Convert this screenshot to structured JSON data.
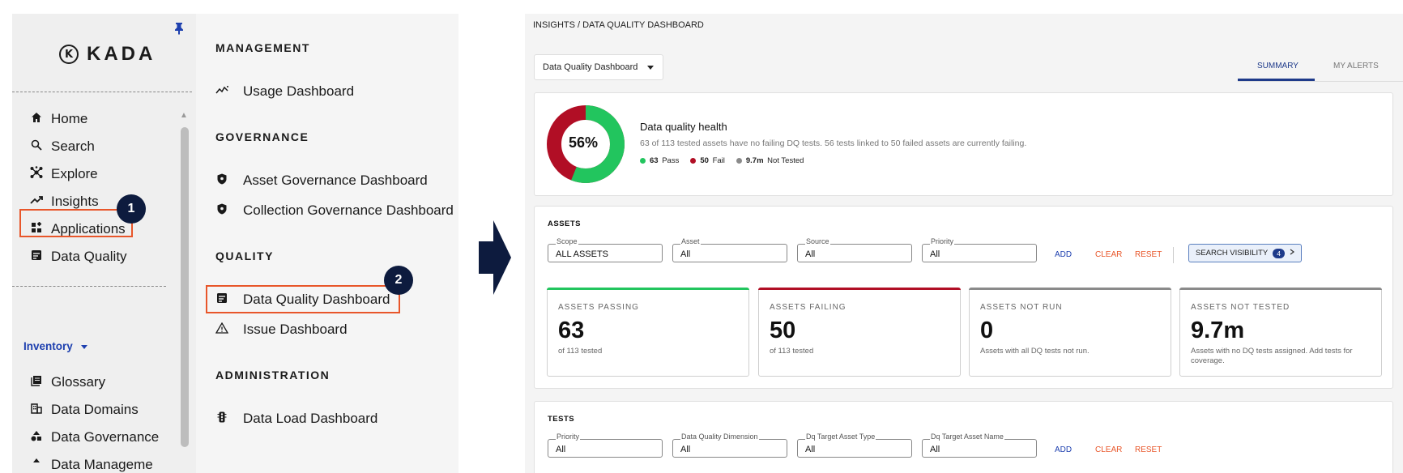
{
  "nav": {
    "logo_mark": "K",
    "logo_text": "KADA",
    "items": [
      {
        "icon": "home-icon",
        "label": "Home"
      },
      {
        "icon": "search-icon",
        "label": "Search"
      },
      {
        "icon": "explore-icon",
        "label": "Explore"
      },
      {
        "icon": "trend-icon",
        "label": "Insights"
      },
      {
        "icon": "apps-icon",
        "label": "Applications"
      },
      {
        "icon": "data-quality-icon",
        "label": "Data Quality"
      }
    ],
    "inventory_label": "Inventory",
    "inventory_items": [
      {
        "icon": "glossary-icon",
        "label": "Glossary"
      },
      {
        "icon": "domains-icon",
        "label": "Data Domains"
      },
      {
        "icon": "governance-icon",
        "label": "Data Governance"
      },
      {
        "icon": "management-icon",
        "label": "Data Manageme"
      }
    ]
  },
  "callouts": {
    "one": "1",
    "two": "2"
  },
  "submenu": {
    "management_title": "MANAGEMENT",
    "usage_dashboard": "Usage Dashboard",
    "governance_title": "GOVERNANCE",
    "asset_governance": "Asset Governance Dashboard",
    "collection_governance": "Collection Governance Dashboard",
    "quality_title": "QUALITY",
    "dq_dashboard": "Data Quality Dashboard",
    "issue_dashboard": "Issue Dashboard",
    "administration_title": "ADMINISTRATION",
    "data_load": "Data Load Dashboard"
  },
  "dashboard": {
    "breadcrumb": "INSIGHTS / DATA QUALITY DASHBOARD",
    "selector_value": "Data Quality Dashboard",
    "tabs": {
      "summary": "SUMMARY",
      "alerts": "MY ALERTS"
    },
    "health": {
      "percent": "56%",
      "pass_fraction": 0.56,
      "title": "Data quality health",
      "description": "63 of 113 tested assets have no failing DQ tests. 56 tests linked to 50 failed assets are currently failing.",
      "pass_count": "63",
      "pass_label": "Pass",
      "fail_count": "50",
      "fail_label": "Fail",
      "nottested_count": "9.7m",
      "nottested_label": "Not Tested",
      "colors": {
        "pass": "#22c55e",
        "fail": "#b10e25",
        "not_tested": "#8a8a8a"
      }
    },
    "assets": {
      "title": "ASSETS",
      "filters": [
        {
          "label": "Scope",
          "value": "ALL ASSETS"
        },
        {
          "label": "Asset",
          "value": "All"
        },
        {
          "label": "Source",
          "value": "All"
        },
        {
          "label": "Priority",
          "value": "All"
        }
      ],
      "add": "ADD",
      "clear": "CLEAR",
      "reset": "RESET",
      "search_visibility": "SEARCH VISIBILITY",
      "search_visibility_count": "4"
    },
    "stats": [
      {
        "label": "ASSETS PASSING",
        "value": "63",
        "sub": "of 113 tested",
        "color": "#22c55e"
      },
      {
        "label": "ASSETS FAILING",
        "value": "50",
        "sub": "of 113 tested",
        "color": "#b10e25"
      },
      {
        "label": "ASSETS NOT RUN",
        "value": "0",
        "sub": "Assets with all DQ tests not run.",
        "color": "#8a8a8a"
      },
      {
        "label": "ASSETS NOT TESTED",
        "value": "9.7m",
        "sub": "Assets with no DQ tests assigned. Add tests for coverage.",
        "color": "#8a8a8a"
      }
    ],
    "tests": {
      "title": "TESTS",
      "filters": [
        {
          "label": "Priority",
          "value": "All"
        },
        {
          "label": "Data Quality Dimension",
          "value": "All"
        },
        {
          "label": "Dq Target Asset Type",
          "value": "All"
        },
        {
          "label": "Dq Target Asset Name",
          "value": "All"
        }
      ],
      "add": "ADD",
      "clear": "CLEAR",
      "reset": "RESET"
    }
  }
}
